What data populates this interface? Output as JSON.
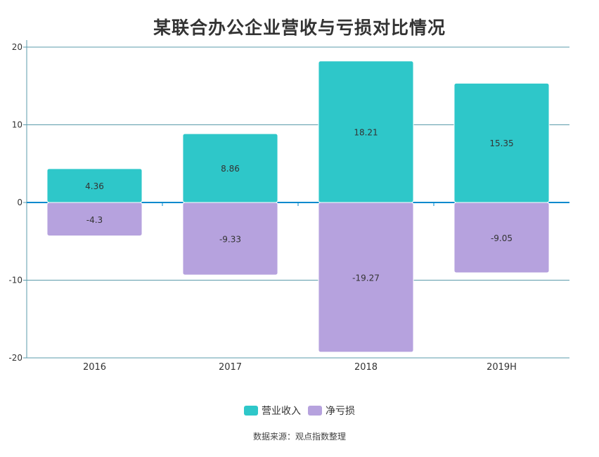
{
  "title": "某联合办公企业营收与亏损对比情况",
  "source": "数据来源：观点指数整理",
  "colors": {
    "revenue": "#2ec7c9",
    "loss": "#b6a2de",
    "axis": "#008acd",
    "grid": "#5b9bab"
  },
  "chart_data": {
    "type": "bar",
    "stacked": true,
    "categories": [
      "2016",
      "2017",
      "2018",
      "2019H"
    ],
    "ylim": [
      -20,
      20
    ],
    "yticks": [
      -20,
      -10,
      0,
      10,
      20
    ],
    "grid": true,
    "legend_position": "bottom",
    "series": [
      {
        "name": "营业收入",
        "values": [
          4.36,
          8.86,
          18.21,
          15.35
        ]
      },
      {
        "name": "净亏损",
        "values": [
          -4.3,
          -9.33,
          -19.27,
          -9.05
        ]
      }
    ]
  }
}
